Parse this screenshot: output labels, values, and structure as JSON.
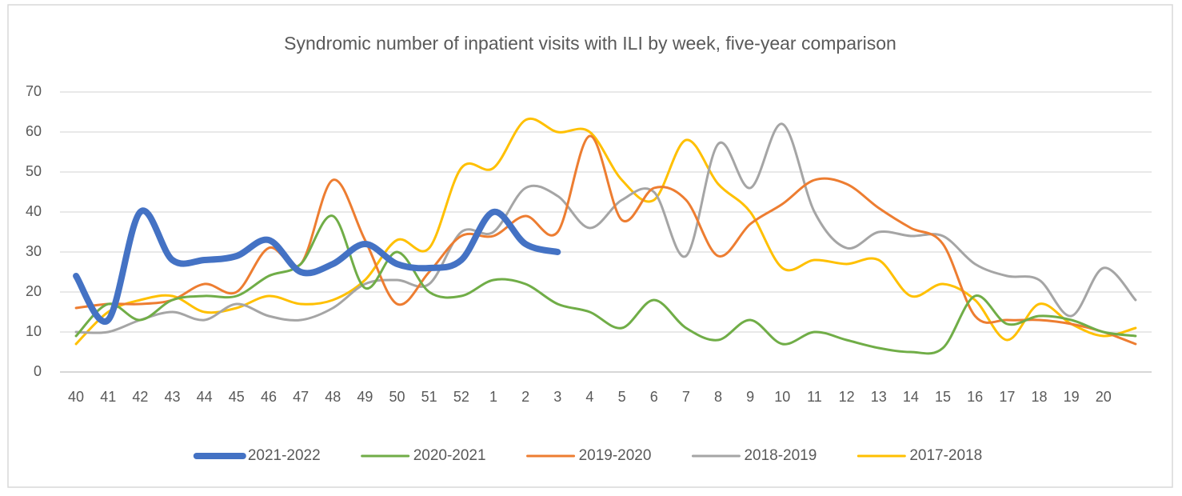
{
  "chart_data": {
    "type": "line",
    "title": "Syndromic number of inpatient visits with ILI by week, five-year comparison",
    "categories": [
      "40",
      "41",
      "42",
      "43",
      "44",
      "45",
      "46",
      "47",
      "48",
      "49",
      "50",
      "51",
      "52",
      "1",
      "2",
      "3",
      "4",
      "5",
      "6",
      "7",
      "8",
      "9",
      "10",
      "11",
      "12",
      "13",
      "14",
      "15",
      "16",
      "17",
      "18",
      "19",
      "20",
      null
    ],
    "ylim": [
      0,
      70
    ],
    "yticks": [
      0,
      10,
      20,
      30,
      40,
      50,
      60,
      70
    ],
    "grid": true,
    "smooth": true,
    "legend": "bottom",
    "series": [
      {
        "name": "2021-2022",
        "color": "#4472c4",
        "values": [
          24,
          13,
          40,
          28,
          28,
          29,
          33,
          25,
          27,
          32,
          27,
          26,
          28,
          40,
          32,
          30,
          null,
          null,
          null,
          null,
          null,
          null,
          null,
          null,
          null,
          null,
          null,
          null,
          null,
          null,
          null,
          null,
          null,
          null
        ]
      },
      {
        "name": "2020-2021",
        "color": "#70ad47",
        "values": [
          9,
          17,
          13,
          18,
          19,
          19,
          24,
          27,
          39,
          21,
          30,
          20,
          19,
          23,
          22,
          17,
          15,
          11,
          18,
          11,
          8,
          13,
          7,
          10,
          8,
          6,
          5,
          6,
          19,
          12,
          14,
          13,
          10,
          9
        ]
      },
      {
        "name": "2019-2020",
        "color": "#ed7d31",
        "values": [
          16,
          17,
          17,
          18,
          22,
          20,
          31,
          27,
          48,
          33,
          17,
          25,
          34,
          34,
          39,
          35,
          59,
          38,
          46,
          43,
          29,
          37,
          42,
          48,
          47,
          41,
          36,
          32,
          14,
          13,
          13,
          12,
          10,
          7
        ]
      },
      {
        "name": "2018-2019",
        "color": "#a5a5a5",
        "values": [
          10,
          10,
          13,
          15,
          13,
          17,
          14,
          13,
          16,
          22,
          23,
          22,
          35,
          35,
          46,
          44,
          36,
          43,
          45,
          29,
          57,
          46,
          62,
          40,
          31,
          35,
          34,
          34,
          27,
          24,
          23,
          14,
          26,
          18
        ]
      },
      {
        "name": "2017-2018",
        "color": "#ffc000",
        "values": [
          7,
          15,
          18,
          19,
          15,
          16,
          19,
          17,
          18,
          23,
          33,
          31,
          51,
          51,
          63,
          60,
          60,
          48,
          43,
          58,
          47,
          40,
          26,
          28,
          27,
          28,
          19,
          22,
          18,
          8,
          17,
          12,
          9,
          11
        ]
      }
    ]
  }
}
